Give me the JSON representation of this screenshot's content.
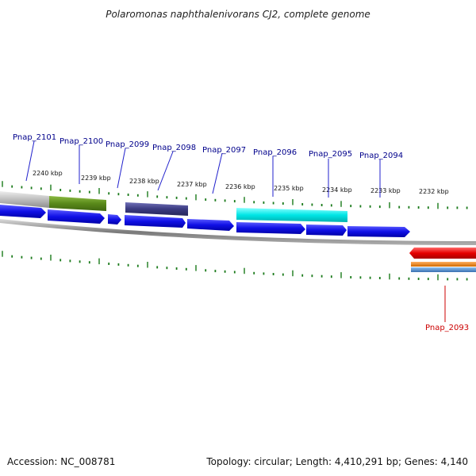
{
  "title": "Polaromonas naphthalenivorans CJ2, complete genome",
  "footer": {
    "accession": "Accession: NC_008781",
    "summary": "Topology: circular; Length: 4,410,291 bp; Genes: 4,140"
  },
  "kbp_labels": [
    "2240 kbp",
    "2239 kbp",
    "2238 kbp",
    "2237 kbp",
    "2236 kbp",
    "2235 kbp",
    "2234 kbp",
    "2233 kbp",
    "2232 kbp"
  ],
  "genes": [
    "Pnap_2101",
    "Pnap_2100",
    "Pnap_2099",
    "Pnap_2098",
    "Pnap_2097",
    "Pnap_2096",
    "Pnap_2095",
    "Pnap_2094",
    "Pnap_2093"
  ],
  "colors": {
    "forward_cds": "#1010e6",
    "reverse_cds": "#e60000",
    "backbone": "#8a8a8a",
    "tick": "#1a7a1a",
    "feature_green": "#5a8a1a",
    "feature_purple": "#3a3a80",
    "feature_cyan": "#00e6e6",
    "feature_orange": "#f08010",
    "feature_blue": "#4a88c8",
    "label_forward": "#00008b",
    "label_reverse": "#cc0000"
  }
}
